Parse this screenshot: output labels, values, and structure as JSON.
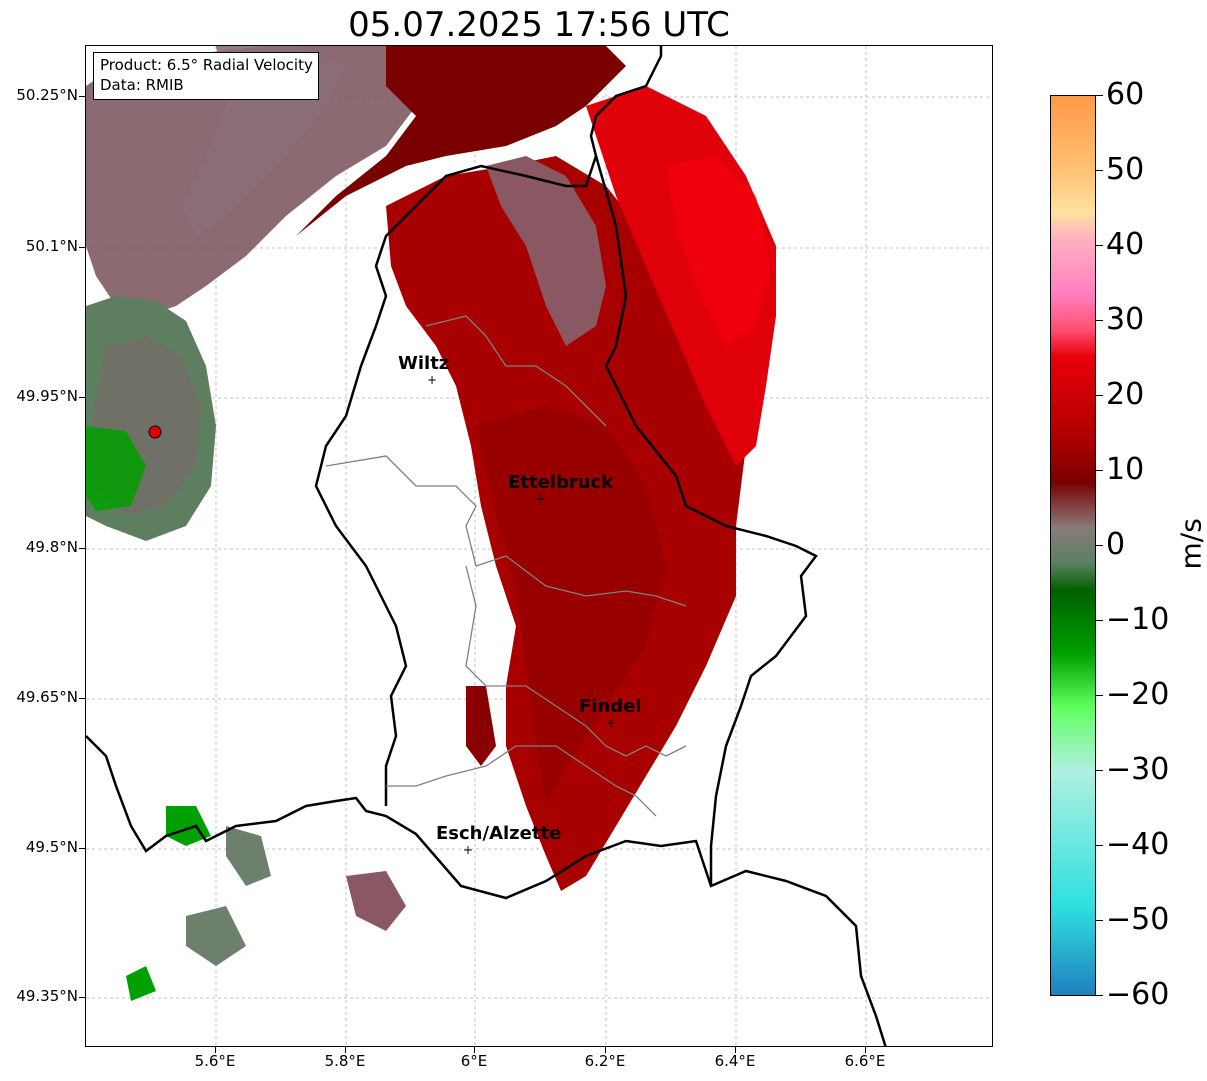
{
  "title": "05.07.2025 17:56 UTC",
  "info": {
    "product": "Product: 6.5° Radial Velocity",
    "data": "Data: RMIB"
  },
  "lat_labels": [
    "50.25°N",
    "50.1°N",
    "49.95°N",
    "49.8°N",
    "49.65°N",
    "49.5°N",
    "49.35°N"
  ],
  "lon_labels": [
    "5.6°E",
    "5.8°E",
    "6°E",
    "6.2°E",
    "6.4°E",
    "6.6°E"
  ],
  "cities": [
    "Wiltz",
    "Ettelbruck",
    "Findel",
    "Esch/Alzette"
  ],
  "colorbar": {
    "labels": [
      "60",
      "50",
      "40",
      "30",
      "20",
      "10",
      "0",
      "−10",
      "−20",
      "−30",
      "−40",
      "−50",
      "−60"
    ],
    "unit": "m/s",
    "range": [
      -60,
      60
    ],
    "colors": {
      "strong_positive": "#ff9a4a",
      "pink": "#ff80c0",
      "red": "#e8000a",
      "dark_red": "#7a0000",
      "grey": "#8a7a7a",
      "green_grey": "#5a8060",
      "green": "#00a000",
      "light_green": "#60ff60",
      "cyan": "#30e0e0",
      "blue": "#2080c0"
    }
  },
  "radar_site": {
    "lat": 49.914,
    "lon": 5.505
  }
}
